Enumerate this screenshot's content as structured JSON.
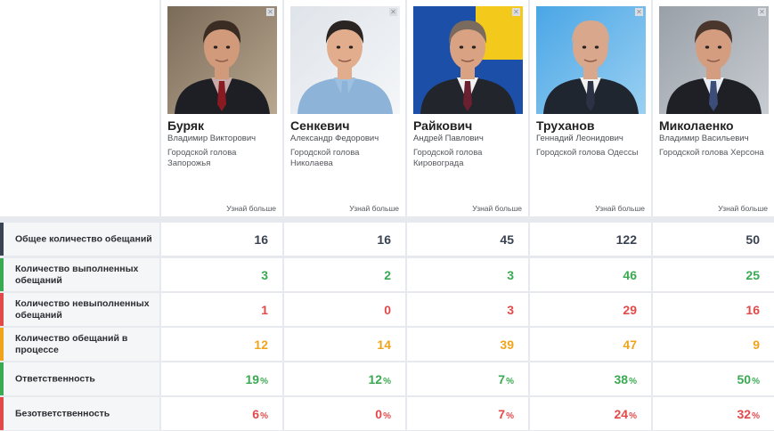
{
  "colors": {
    "total": "#3a4351",
    "done": "#3aaa52",
    "failed": "#e24a4a",
    "progress": "#f0a41c",
    "responsible": "#3aaa52",
    "irresponsible": "#e24a4a"
  },
  "more_label": "Узнай больше",
  "people": [
    {
      "surname": "Буряк",
      "fullname": "Владимир Викторович",
      "position": "Городской голова Запорожья"
    },
    {
      "surname": "Сенкевич",
      "fullname": "Александр Федорович",
      "position": "Городской голова Николаева"
    },
    {
      "surname": "Райкович",
      "fullname": "Андрей Павлович",
      "position": "Городской голова Кировограда"
    },
    {
      "surname": "Труханов",
      "fullname": "Геннадий Леонидович",
      "position": "Городской голова Одессы"
    },
    {
      "surname": "Миколаенко",
      "fullname": "Владимир Васильевич",
      "position": "Городской голова Херсона"
    }
  ],
  "rows": [
    {
      "label": "Общее количество обещаний",
      "color_key": "total",
      "values": [
        "16",
        "16",
        "45",
        "122",
        "50"
      ],
      "suffix": ""
    },
    {
      "label": "Количество выполненных обещаний",
      "color_key": "done",
      "values": [
        "3",
        "2",
        "3",
        "46",
        "25"
      ],
      "suffix": ""
    },
    {
      "label": "Количество невыполненных обещаний",
      "color_key": "failed",
      "values": [
        "1",
        "0",
        "3",
        "29",
        "16"
      ],
      "suffix": ""
    },
    {
      "label": "Количество обещаний в процессе",
      "color_key": "progress",
      "values": [
        "12",
        "14",
        "39",
        "47",
        "9"
      ],
      "suffix": ""
    },
    {
      "label": "Ответственность",
      "color_key": "responsible",
      "values": [
        "19",
        "12",
        "7",
        "38",
        "50"
      ],
      "suffix": "%"
    },
    {
      "label": "Безответственность",
      "color_key": "irresponsible",
      "values": [
        "6",
        "0",
        "7",
        "24",
        "32"
      ],
      "suffix": "%"
    }
  ]
}
